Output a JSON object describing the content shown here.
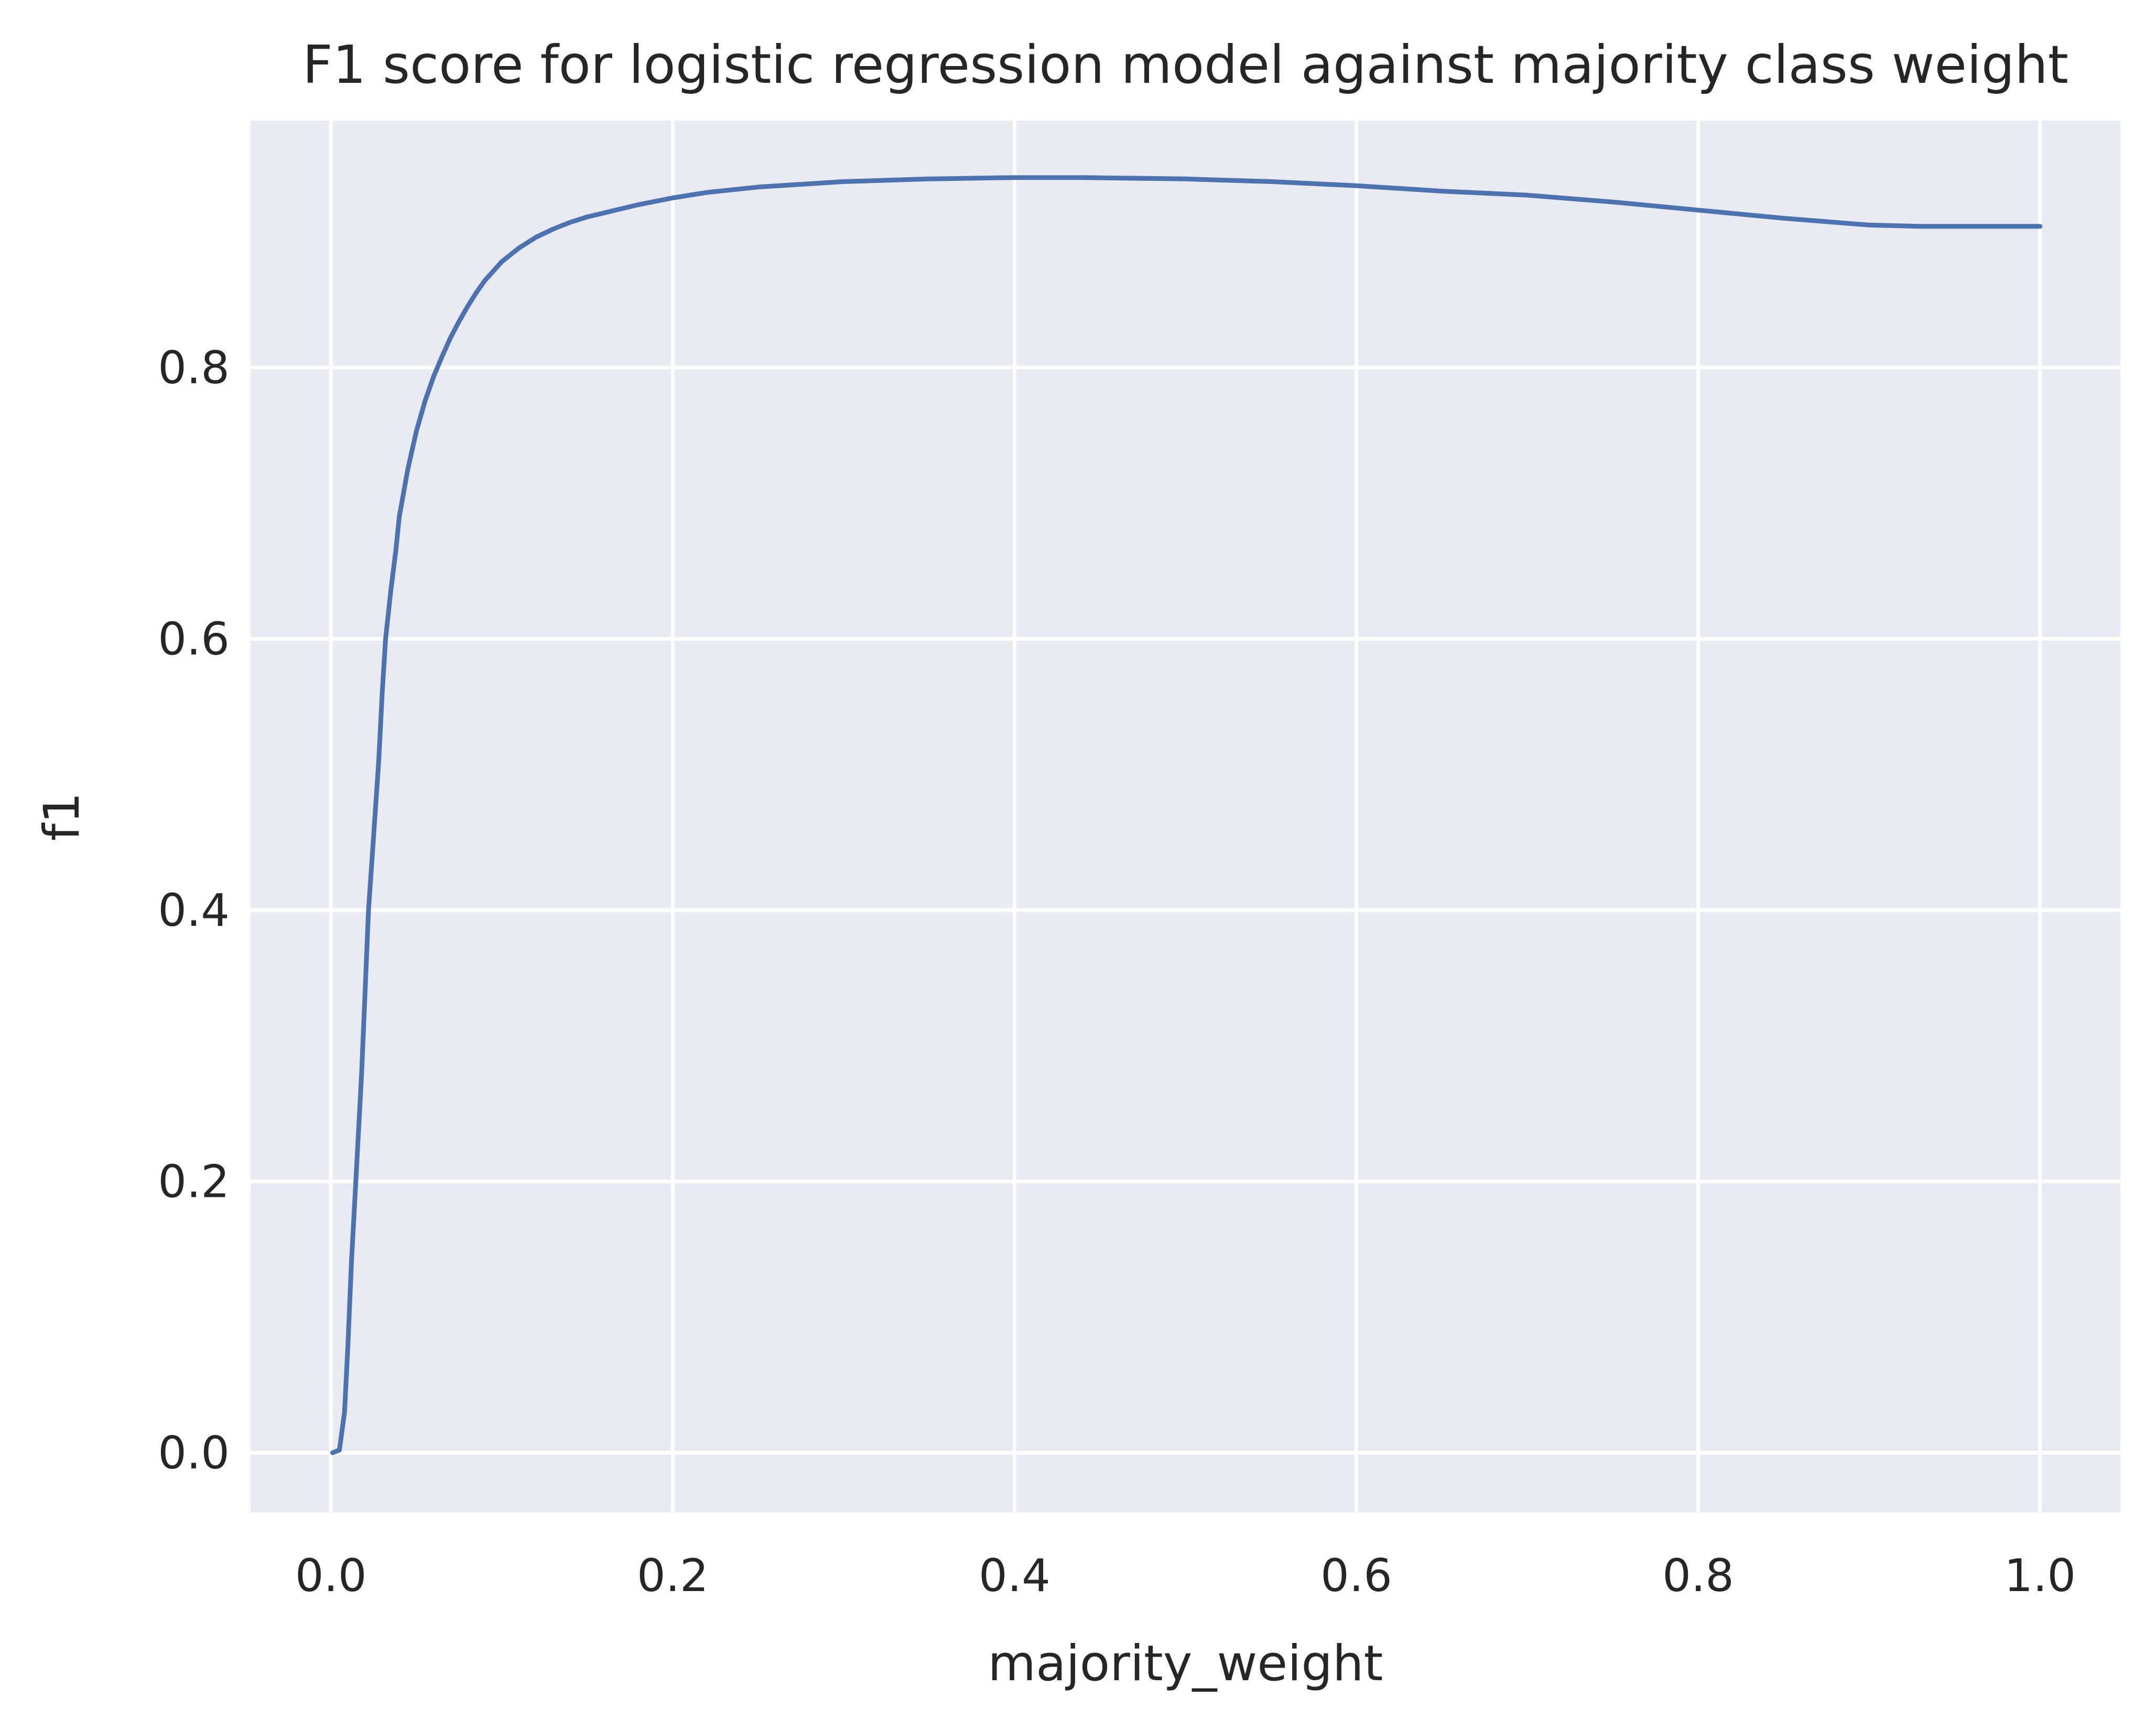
{
  "chart_data": {
    "type": "line",
    "title": "F1 score for logistic regression model against majority class weight",
    "xlabel": "majority_weight",
    "ylabel": "f1",
    "xlim": [
      -0.047,
      1.047
    ],
    "ylim": [
      -0.044,
      0.982
    ],
    "xticks": [
      0.0,
      0.2,
      0.4,
      0.6,
      0.8,
      1.0
    ],
    "xtick_labels": [
      "0.0",
      "0.2",
      "0.4",
      "0.6",
      "0.8",
      "1.0"
    ],
    "yticks": [
      0.0,
      0.2,
      0.4,
      0.6,
      0.8
    ],
    "ytick_labels": [
      "0.0",
      "0.2",
      "0.4",
      "0.6",
      "0.8"
    ],
    "grid": true,
    "background_color": "#eaeaf2",
    "grid_color": "#ffffff",
    "line_color": "#4c72b0",
    "series": [
      {
        "x": [
          0.001,
          0.005,
          0.008,
          0.01,
          0.012,
          0.015,
          0.018,
          0.02,
          0.022,
          0.025,
          0.028,
          0.03,
          0.032,
          0.035,
          0.038,
          0.04,
          0.045,
          0.05,
          0.055,
          0.06,
          0.065,
          0.07,
          0.075,
          0.08,
          0.085,
          0.09,
          0.1,
          0.11,
          0.12,
          0.13,
          0.14,
          0.15,
          0.16,
          0.18,
          0.2,
          0.22,
          0.25,
          0.3,
          0.35,
          0.4,
          0.44,
          0.5,
          0.55,
          0.6,
          0.65,
          0.7,
          0.75,
          0.8,
          0.85,
          0.9,
          0.93,
          0.95,
          1.0
        ],
        "y": [
          0.0,
          0.002,
          0.03,
          0.08,
          0.14,
          0.21,
          0.28,
          0.34,
          0.4,
          0.455,
          0.51,
          0.56,
          0.6,
          0.635,
          0.665,
          0.69,
          0.725,
          0.753,
          0.775,
          0.793,
          0.808,
          0.822,
          0.834,
          0.845,
          0.855,
          0.864,
          0.878,
          0.888,
          0.896,
          0.902,
          0.907,
          0.911,
          0.914,
          0.92,
          0.925,
          0.929,
          0.933,
          0.937,
          0.939,
          0.94,
          0.94,
          0.939,
          0.937,
          0.934,
          0.93,
          0.927,
          0.922,
          0.916,
          0.91,
          0.905,
          0.904,
          0.904,
          0.904
        ]
      }
    ]
  }
}
